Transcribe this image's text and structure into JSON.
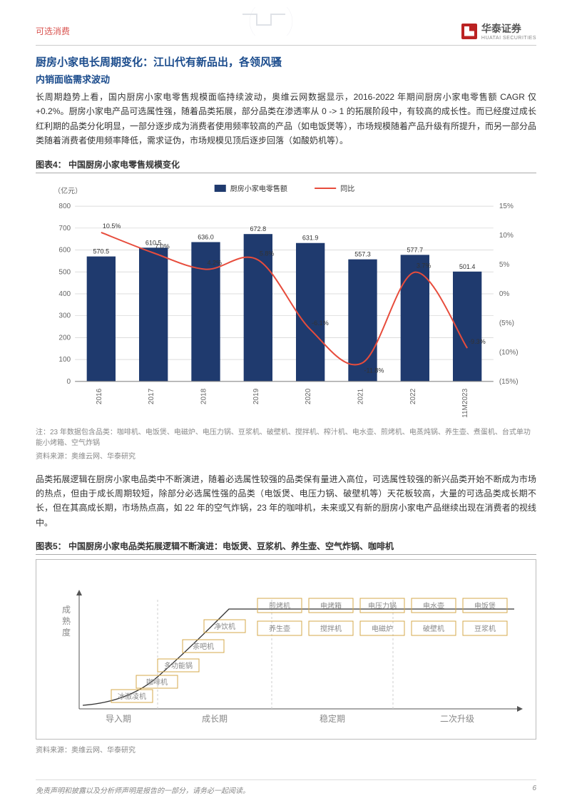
{
  "header": {
    "category": "可选消费",
    "company": "华泰证券",
    "company_en": "HUATAI SECURITIES"
  },
  "section": {
    "title": "厨房小家电长周期变化：江山代有新品出，各领风骚",
    "subtitle": "内销面临需求波动",
    "para1": "长周期趋势上看，国内厨房小家电零售规模面临持续波动，奥维云网数据显示，2016-2022 年期间厨房小家电零售额 CAGR 仅+0.2%。厨房小家电产品可选属性强，随着品类拓展，部分品类在渗透率从 0 -> 1 的拓展阶段中，有较高的成长性。而已经度过成长红利期的品类分化明显，一部分逐步成为消费者使用频率较高的产品（如电饭煲等），市场规模随着产品升级有所提升，而另一部分品类随着消费者使用频率降低，需求证伪，市场规模见顶后逐步回落（如酸奶机等）。",
    "para2": "品类拓展逻辑在厨房小家电品类中不断演进，随着必选属性较强的品类保有量进入高位，可选属性较强的新兴品类开始不断成为市场的热点，但由于成长周期较短，除部分必选属性强的品类（电饭煲、电压力锅、破壁机等）天花板较高，大量的可选品类成长期不长，但在其高成长期，市场热点高，如 22 年的空气炸锅，23 年的咖啡机，未来或又有新的厨房小家电产品继续出现在消费者的视线中。"
  },
  "chart4": {
    "caption": "图表4： 中国厨房小家电零售规模变化",
    "note": "注：23 年数据包含品类：咖啡机、电饭煲、电磁炉、电压力锅、豆浆机、破壁机、搅拌机、榨汁机、电水壶、煎烤机、电蒸炖锅、养生壶、煮蛋机、台式单功能小烤箱、空气炸锅",
    "source": "资料来源：奥维云网、华泰研究",
    "y_unit": "（亿元）",
    "legend_bar": "厨房小家电零售额",
    "legend_line": "同比",
    "categories": [
      "2016",
      "2017",
      "2018",
      "2019",
      "2020",
      "2021",
      "2022",
      "11M2023"
    ],
    "bar_values": [
      570.5,
      610.5,
      636.0,
      672.8,
      631.9,
      557.3,
      577.7,
      501.4
    ],
    "line_values": [
      10.5,
      7.0,
      4.2,
      5.8,
      -6.1,
      -11.8,
      3.7,
      -9.3
    ],
    "bar_color": "#1f3a6e",
    "line_color": "#e74c3c",
    "y1_ticks": [
      0,
      100,
      200,
      300,
      400,
      500,
      600,
      700,
      800
    ],
    "y2_ticks": [
      -15,
      -10,
      -5,
      0,
      5,
      10,
      15
    ],
    "y2_labels": [
      "(15%)",
      "(10%)",
      "(5%)",
      "0%",
      "5%",
      "10%",
      "15%"
    ],
    "grid_color": "#d0d0d0",
    "bg": "#ffffff",
    "label_fontsize": 10,
    "value_fontsize": 9
  },
  "chart5": {
    "caption": "图表5： 中国厨房小家电品类拓展逻辑不断演进：电饭煲、豆浆机、养生壶、空气炸锅、咖啡机",
    "source": "资料来源：奥维云网、华泰研究",
    "y_label": "成熟度",
    "phases": [
      "导入期",
      "成长期",
      "稳定期",
      "二次升级"
    ],
    "curve_items": [
      "冰激凌机",
      "咖啡机",
      "多功能锅",
      "茶吧机",
      "净饮机"
    ],
    "top_row": [
      "煎烤机",
      "电烤箱",
      "电压力锅",
      "电水壶",
      "电饭煲"
    ],
    "mid_row": [
      "养生壶",
      "搅拌机",
      "电磁炉",
      "破壁机",
      "豆浆机"
    ],
    "box_border": "#d4a84b",
    "text_color": "#888",
    "axis_color": "#555",
    "curve_color": "#333"
  },
  "footer": {
    "disclaimer": "免责声明和披露以及分析师声明是报告的一部分，请务必一起阅读。",
    "page": "6"
  }
}
